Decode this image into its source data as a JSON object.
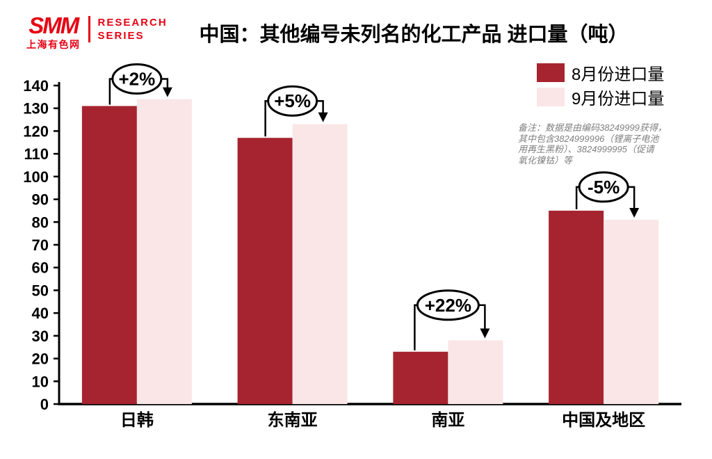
{
  "header": {
    "logo": {
      "brand": "SMM",
      "brand_sub": "上海有色网",
      "series_line1": "RESEARCH",
      "series_line2": "SERIES",
      "brand_color": "#E60113"
    },
    "title": "中国：其他编号未列名的化工产品 进口量（吨）"
  },
  "legend": {
    "items": [
      {
        "label": "8月份进口量",
        "color": "#A6242F"
      },
      {
        "label": "9月份进口量",
        "color": "#FAE6E7"
      }
    ]
  },
  "note": {
    "lines": [
      "备注：数据是由编码38249999获得，",
      "其中包含3824999996（锂离子电池",
      "用再生黑粉）、3824999995（促请",
      "氧化镍钴）等"
    ]
  },
  "colors": {
    "bar_august": "#A6242F",
    "bar_september": "#FAE6E7",
    "axis": "#000000",
    "note_text": "#7F7F7F",
    "brand_red": "#E60113"
  },
  "chart_data": {
    "type": "bar",
    "title": "中国：其他编号未列名的化工产品 进口量（吨）",
    "xlabel": "",
    "ylabel": "",
    "categories": [
      "日韩",
      "东南亚",
      "南亚",
      "中国及地区"
    ],
    "series": [
      {
        "name": "8月份进口量",
        "color": "#A6242F",
        "values": [
          131,
          117,
          23,
          85
        ]
      },
      {
        "name": "9月份进口量",
        "color": "#FAE6E7",
        "values": [
          134,
          123,
          28,
          81
        ]
      }
    ],
    "annotations": [
      {
        "category": "日韩",
        "label": "+2%"
      },
      {
        "category": "东南亚",
        "label": "+5%"
      },
      {
        "category": "南亚",
        "label": "+22%"
      },
      {
        "category": "中国及地区",
        "label": "-5%"
      }
    ],
    "ylim": [
      0,
      140
    ],
    "ytick_step": 10,
    "grid": false,
    "legend_position": "top-right"
  }
}
